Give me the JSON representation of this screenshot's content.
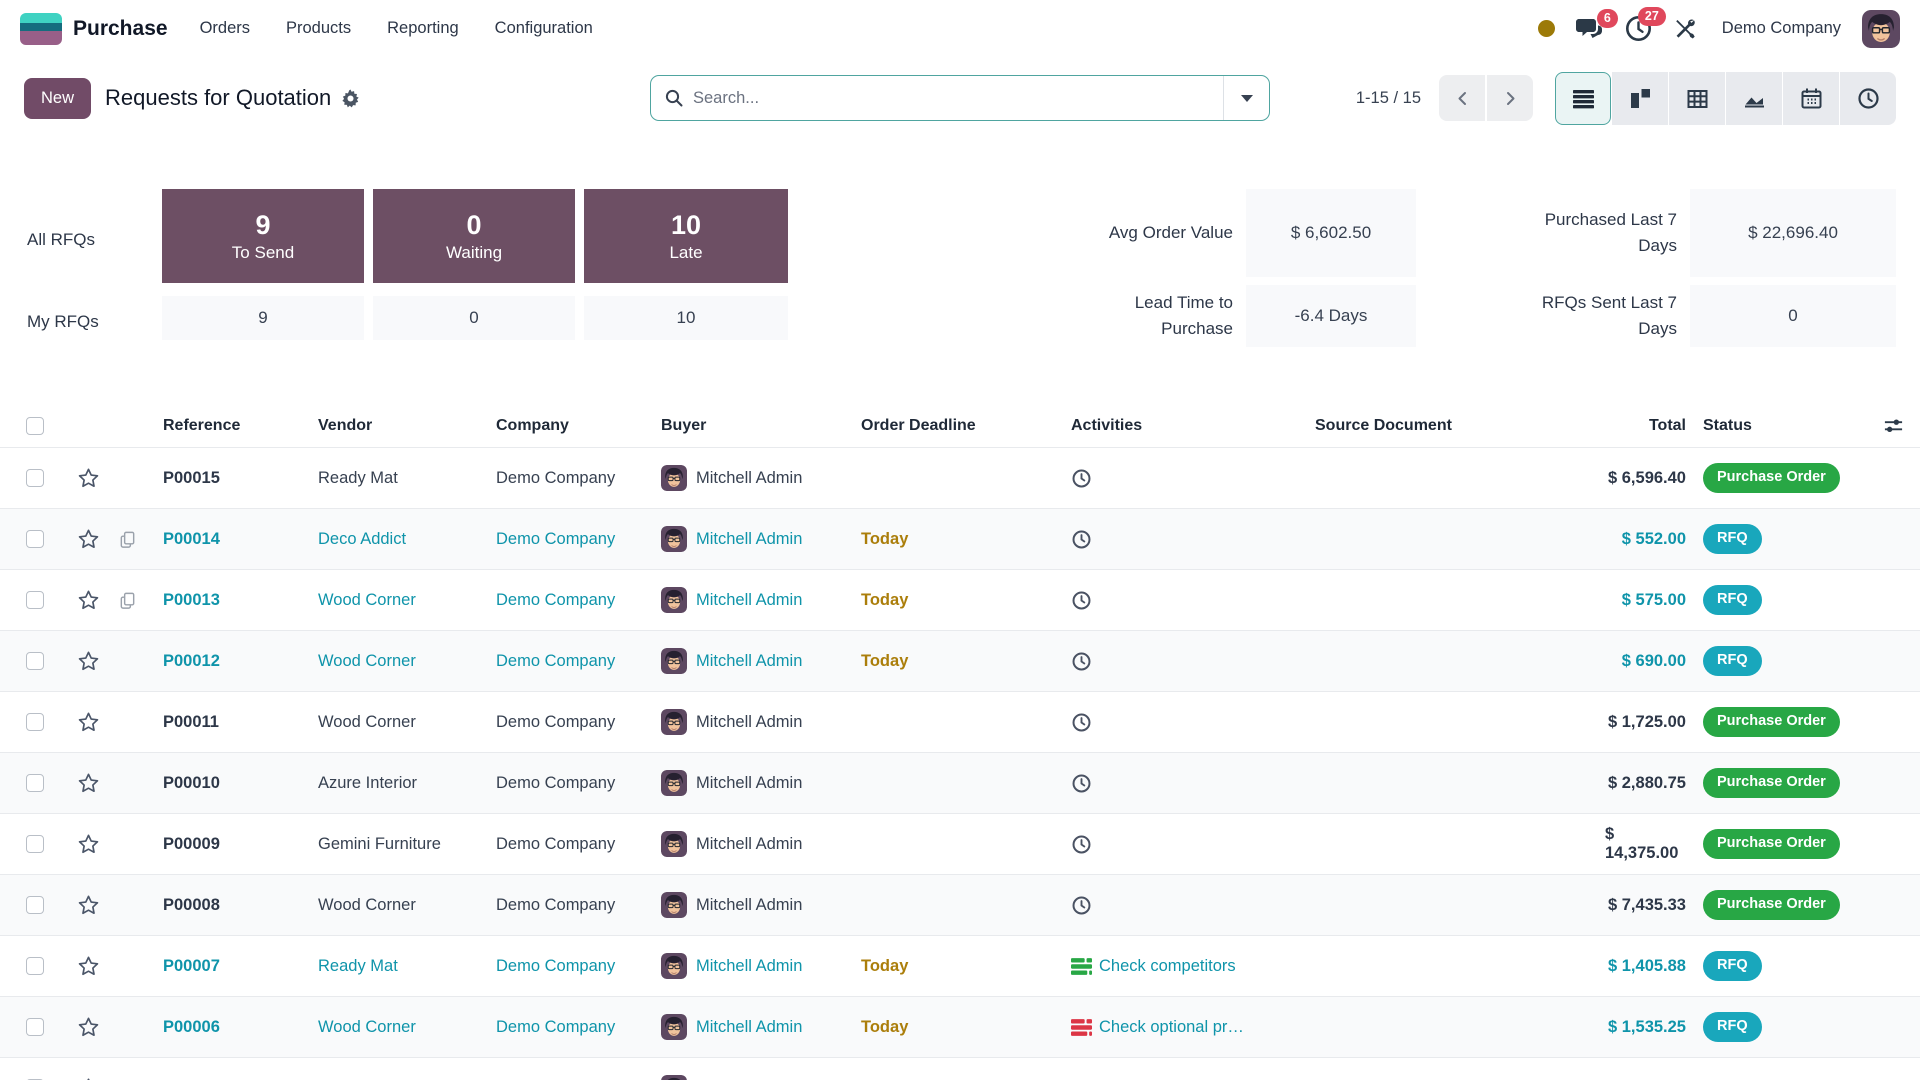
{
  "app": {
    "brand": "Purchase",
    "menus": [
      {
        "label": "Orders"
      },
      {
        "label": "Products"
      },
      {
        "label": "Reporting"
      },
      {
        "label": "Configuration"
      }
    ],
    "systray": {
      "chat_badge": "6",
      "activity_badge": "27",
      "company": "Demo Company"
    }
  },
  "control": {
    "new_label": "New",
    "title": "Requests for Quotation",
    "search_placeholder": "Search...",
    "search_value": "",
    "pager": "1-15 / 15"
  },
  "dashboard": {
    "all_label": "All RFQs",
    "my_label": "My RFQs",
    "buttons": [
      {
        "count": "9",
        "label": "To Send",
        "my": "9"
      },
      {
        "count": "0",
        "label": "Waiting",
        "my": "0"
      },
      {
        "count": "10",
        "label": "Late",
        "my": "10"
      }
    ],
    "stats_left": [
      {
        "label": "Avg Order Value",
        "value": "$ 6,602.50"
      },
      {
        "label": "Lead Time to Purchase",
        "value": "-6.4 Days"
      }
    ],
    "stats_right": [
      {
        "label": "Purchased Last 7 Days",
        "value": "$ 22,696.40"
      },
      {
        "label": "RFQs Sent Last 7 Days",
        "value": "0"
      }
    ]
  },
  "table": {
    "headers": [
      "Reference",
      "Vendor",
      "Company",
      "Buyer",
      "Order Deadline",
      "Activities",
      "Source Document",
      "Total",
      "Status"
    ],
    "rows": [
      {
        "ref": "P00015",
        "vendor": "Ready Mat",
        "company": "Demo Company",
        "buyer": "Mitchell Admin",
        "deadline": "",
        "activity": "clock",
        "activity_label": "",
        "total": "$ 6,596.40",
        "status": "Purchase Order",
        "state": "po",
        "has_copy": false,
        "partial": false
      },
      {
        "ref": "P00014",
        "vendor": "Deco Addict",
        "company": "Demo Company",
        "buyer": "Mitchell Admin",
        "deadline": "Today",
        "activity": "clock",
        "activity_label": "",
        "total": "$ 552.00",
        "status": "RFQ",
        "state": "rfq",
        "has_copy": true,
        "partial": false
      },
      {
        "ref": "P00013",
        "vendor": "Wood Corner",
        "company": "Demo Company",
        "buyer": "Mitchell Admin",
        "deadline": "Today",
        "activity": "clock",
        "activity_label": "",
        "total": "$ 575.00",
        "status": "RFQ",
        "state": "rfq",
        "has_copy": true,
        "partial": false
      },
      {
        "ref": "P00012",
        "vendor": "Wood Corner",
        "company": "Demo Company",
        "buyer": "Mitchell Admin",
        "deadline": "Today",
        "activity": "clock",
        "activity_label": "",
        "total": "$ 690.00",
        "status": "RFQ",
        "state": "rfq",
        "has_copy": false,
        "partial": false
      },
      {
        "ref": "P00011",
        "vendor": "Wood Corner",
        "company": "Demo Company",
        "buyer": "Mitchell Admin",
        "deadline": "",
        "activity": "clock",
        "activity_label": "",
        "total": "$ 1,725.00",
        "status": "Purchase Order",
        "state": "po",
        "has_copy": false,
        "partial": false
      },
      {
        "ref": "P00010",
        "vendor": "Azure Interior",
        "company": "Demo Company",
        "buyer": "Mitchell Admin",
        "deadline": "",
        "activity": "clock",
        "activity_label": "",
        "total": "$ 2,880.75",
        "status": "Purchase Order",
        "state": "po",
        "has_copy": false,
        "partial": false
      },
      {
        "ref": "P00009",
        "vendor": "Gemini Furniture",
        "company": "Demo Company",
        "buyer": "Mitchell Admin",
        "deadline": "",
        "activity": "clock",
        "activity_label": "",
        "total": "$ 14,375.00",
        "status": "Purchase Order",
        "state": "po",
        "has_copy": false,
        "partial": false
      },
      {
        "ref": "P00008",
        "vendor": "Wood Corner",
        "company": "Demo Company",
        "buyer": "Mitchell Admin",
        "deadline": "",
        "activity": "clock",
        "activity_label": "",
        "total": "$ 7,435.33",
        "status": "Purchase Order",
        "state": "po",
        "has_copy": false,
        "partial": false
      },
      {
        "ref": "P00007",
        "vendor": "Ready Mat",
        "company": "Demo Company",
        "buyer": "Mitchell Admin",
        "deadline": "Today",
        "activity": "list-green",
        "activity_label": "Check competitors",
        "total": "$ 1,405.88",
        "status": "RFQ",
        "state": "rfq",
        "has_copy": false,
        "partial": false
      },
      {
        "ref": "P00006",
        "vendor": "Wood Corner",
        "company": "Demo Company",
        "buyer": "Mitchell Admin",
        "deadline": "Today",
        "activity": "list-red",
        "activity_label": "Check optional pr…",
        "total": "$ 1,535.25",
        "status": "RFQ",
        "state": "rfq",
        "has_copy": false,
        "partial": false
      },
      {
        "ref": "",
        "vendor": "",
        "company": "",
        "buyer": "",
        "deadline": "",
        "activity": "list-gold",
        "activity_label": "",
        "total": "",
        "status": "",
        "state": "rfq",
        "has_copy": false,
        "partial": true
      }
    ]
  },
  "colors": {
    "primary": "#714B67",
    "dash_purple": "#6d4f64",
    "link_teal": "#0f94aa",
    "badge_green": "#28a745",
    "badge_teal": "#19a7bc",
    "badge_red": "#e0485c",
    "today_gold": "#ab7e0b",
    "gold_dot": "#9c7a08"
  }
}
